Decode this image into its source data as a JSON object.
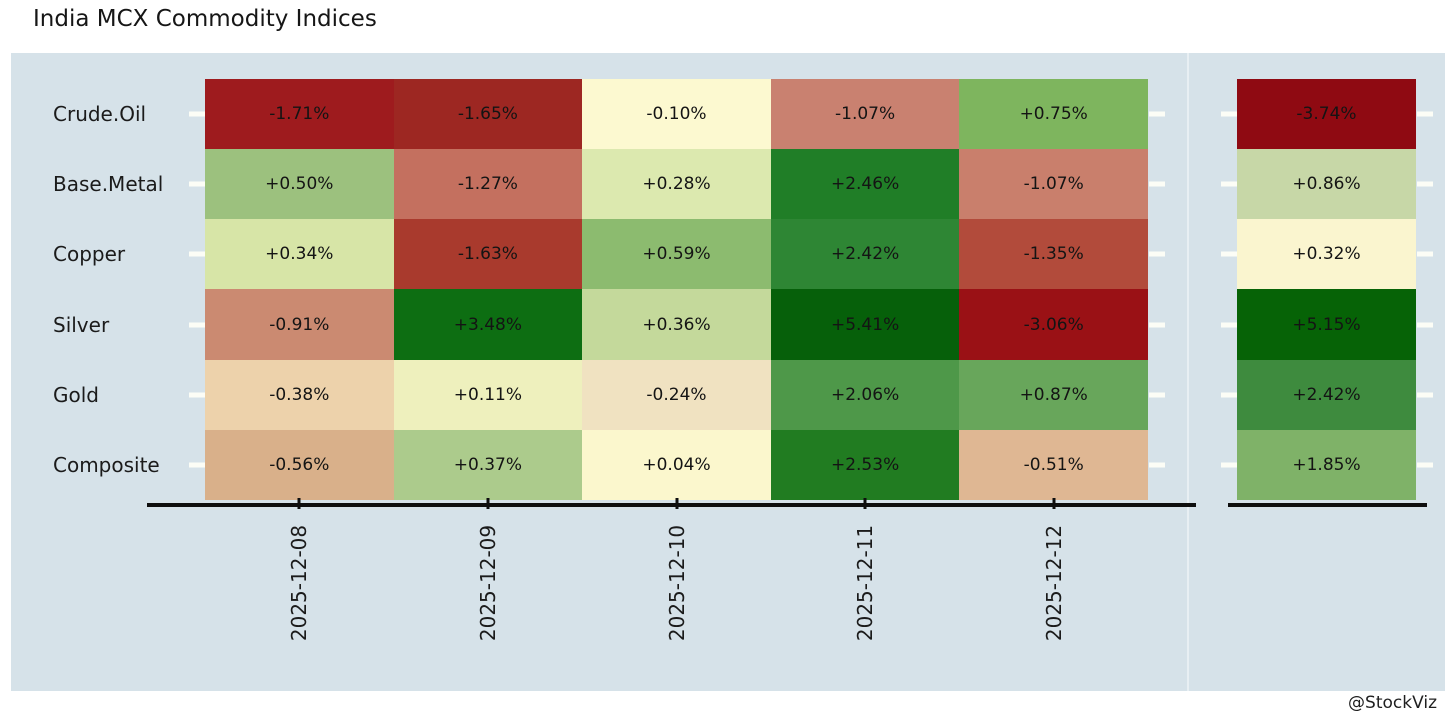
{
  "title": "India MCX Commodity Indices",
  "watermark": "@StockViz",
  "panel_background": "#d6e2e9",
  "chart_data": {
    "type": "heatmap",
    "title": "India MCX Commodity Indices",
    "colormap": "RdYlGn (dark red = most negative, pale yellow = near 0, dark green = most positive)",
    "legend": "none",
    "grid": "off",
    "x_labels": [
      "2025-12-08",
      "2025-12-09",
      "2025-12-10",
      "2025-12-11",
      "2025-12-12"
    ],
    "y_labels": [
      "Crude.Oil",
      "Base.Metal",
      "Copper",
      "Silver",
      "Gold",
      "Composite"
    ],
    "summary_column_note": "detached right column with no axis label (period total)",
    "rows": [
      {
        "label": "Crude.Oil",
        "cells": [
          {
            "text": "-1.71%",
            "value": -1.71,
            "color": "#9e1b1e"
          },
          {
            "text": "-1.65%",
            "value": -1.65,
            "color": "#9d2722"
          },
          {
            "text": "-0.10%",
            "value": -0.1,
            "color": "#fcf9d0"
          },
          {
            "text": "-1.07%",
            "value": -1.07,
            "color": "#c98170"
          },
          {
            "text": "+0.75%",
            "value": 0.75,
            "color": "#7eb55e"
          }
        ],
        "summary": {
          "text": "-3.74%",
          "value": -3.74,
          "color": "#8f0a12"
        }
      },
      {
        "label": "Base.Metal",
        "cells": [
          {
            "text": "+0.50%",
            "value": 0.5,
            "color": "#9cc17e"
          },
          {
            "text": "-1.27%",
            "value": -1.27,
            "color": "#c4705f"
          },
          {
            "text": "+0.28%",
            "value": 0.28,
            "color": "#dce9af"
          },
          {
            "text": "+2.46%",
            "value": 2.46,
            "color": "#207e27"
          },
          {
            "text": "-1.07%",
            "value": -1.07,
            "color": "#c97f6c"
          }
        ],
        "summary": {
          "text": "+0.86%",
          "value": 0.86,
          "color": "#c7d7a7"
        }
      },
      {
        "label": "Copper",
        "cells": [
          {
            "text": "+0.34%",
            "value": 0.34,
            "color": "#d7e5a7"
          },
          {
            "text": "-1.63%",
            "value": -1.63,
            "color": "#a93a2d"
          },
          {
            "text": "+0.59%",
            "value": 0.59,
            "color": "#8cbb6f"
          },
          {
            "text": "+2.42%",
            "value": 2.42,
            "color": "#2e8634"
          },
          {
            "text": "-1.35%",
            "value": -1.35,
            "color": "#b24b3b"
          }
        ],
        "summary": {
          "text": "+0.32%",
          "value": 0.32,
          "color": "#faf5cf"
        }
      },
      {
        "label": "Silver",
        "cells": [
          {
            "text": "-0.91%",
            "value": -0.91,
            "color": "#cb8a71"
          },
          {
            "text": "+3.48%",
            "value": 3.48,
            "color": "#0d6e12"
          },
          {
            "text": "+0.36%",
            "value": 0.36,
            "color": "#c4d99b"
          },
          {
            "text": "+5.41%",
            "value": 5.41,
            "color": "#06600a"
          },
          {
            "text": "-3.06%",
            "value": -3.06,
            "color": "#9a1115"
          }
        ],
        "summary": {
          "text": "+5.15%",
          "value": 5.15,
          "color": "#066306"
        }
      },
      {
        "label": "Gold",
        "cells": [
          {
            "text": "-0.38%",
            "value": -0.38,
            "color": "#edd2ab"
          },
          {
            "text": "+0.11%",
            "value": 0.11,
            "color": "#eef0bd"
          },
          {
            "text": "-0.24%",
            "value": -0.24,
            "color": "#f0e2c1"
          },
          {
            "text": "+2.06%",
            "value": 2.06,
            "color": "#4e9849"
          },
          {
            "text": "+0.87%",
            "value": 0.87,
            "color": "#68a65b"
          }
        ],
        "summary": {
          "text": "+2.42%",
          "value": 2.42,
          "color": "#3e8b3e"
        }
      },
      {
        "label": "Composite",
        "cells": [
          {
            "text": "-0.56%",
            "value": -0.56,
            "color": "#d9b08a"
          },
          {
            "text": "+0.37%",
            "value": 0.37,
            "color": "#accb8c"
          },
          {
            "text": "+0.04%",
            "value": 0.04,
            "color": "#fbf7cd"
          },
          {
            "text": "+2.53%",
            "value": 2.53,
            "color": "#217c21"
          },
          {
            "text": "-0.51%",
            "value": -0.51,
            "color": "#dfb793"
          }
        ],
        "summary": {
          "text": "+1.85%",
          "value": 1.85,
          "color": "#7fb268"
        }
      }
    ]
  }
}
